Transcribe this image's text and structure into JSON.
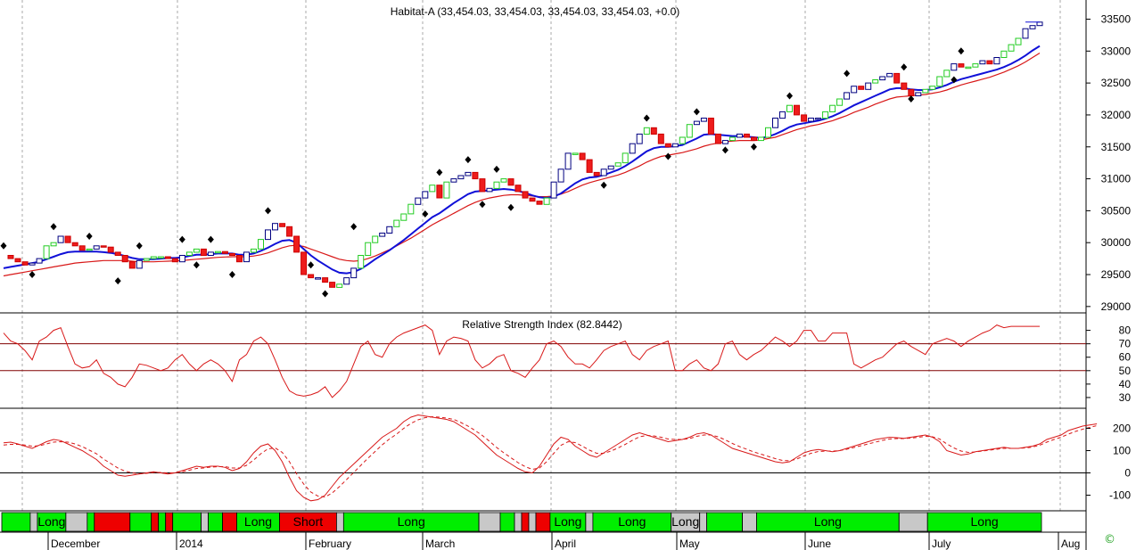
{
  "chart_data": [
    {
      "type": "candlestick",
      "title": "Habitat-A (33,454.03, 33,454.03, 33,454.03, 33,454.03, +0.0)",
      "ylim": [
        28900,
        33800
      ],
      "yticks": [
        29000,
        29500,
        30000,
        30500,
        31000,
        31500,
        32000,
        32500,
        33000,
        33500
      ],
      "ytick_labels": [
        "29000",
        "29500",
        "30000",
        "30500",
        "31000",
        "31500",
        "32000",
        "32500",
        "33000",
        "33500"
      ],
      "x_count": 146,
      "close": [
        29800,
        29750,
        29700,
        29650,
        29680,
        29750,
        29950,
        30000,
        30100,
        30000,
        29950,
        29880,
        29900,
        29950,
        29930,
        29850,
        29800,
        29700,
        29600,
        29720,
        29750,
        29780,
        29780,
        29750,
        29700,
        29800,
        29850,
        29900,
        29800,
        29850,
        29860,
        29830,
        29800,
        29700,
        29850,
        29900,
        30050,
        30200,
        30300,
        30250,
        30100,
        29850,
        29500,
        29450,
        29450,
        29380,
        29300,
        29350,
        29450,
        29600,
        29800,
        30000,
        30100,
        30150,
        30250,
        30350,
        30450,
        30600,
        30700,
        30800,
        30900,
        30700,
        30950,
        31000,
        31050,
        31100,
        31000,
        30800,
        30850,
        30950,
        31000,
        30900,
        30800,
        30700,
        30650,
        30600,
        30700,
        30950,
        31150,
        31400,
        31400,
        31300,
        31100,
        31050,
        31150,
        31200,
        31250,
        31400,
        31550,
        31700,
        31800,
        31700,
        31550,
        31500,
        31550,
        31650,
        31850,
        31900,
        31950,
        31700,
        31550,
        31600,
        31650,
        31700,
        31650,
        31600,
        31650,
        31800,
        31950,
        32050,
        32150,
        32000,
        31900,
        31950,
        31950,
        32050,
        32150,
        32250,
        32350,
        32450,
        32400,
        32500,
        32550,
        32600,
        32650,
        32500,
        32400,
        32300,
        32350,
        32400,
        32450,
        32600,
        32700,
        32800,
        32750,
        32750,
        32800,
        32850,
        32800,
        32900,
        33000,
        33100,
        33200,
        33350,
        33400,
        33454
      ],
      "ma_fast": [
        29600,
        29620,
        29640,
        29660,
        29680,
        29700,
        29740,
        29780,
        29820,
        29850,
        29860,
        29860,
        29860,
        29860,
        29850,
        29840,
        29820,
        29790,
        29760,
        29740,
        29740,
        29740,
        29750,
        29760,
        29760,
        29770,
        29790,
        29810,
        29810,
        29820,
        29830,
        29830,
        29830,
        29810,
        29810,
        29830,
        29870,
        29920,
        29980,
        30030,
        30040,
        30000,
        29900,
        29800,
        29720,
        29650,
        29580,
        29530,
        29520,
        29540,
        29590,
        29660,
        29740,
        29810,
        29880,
        29960,
        30040,
        30130,
        30220,
        30310,
        30400,
        30460,
        30540,
        30620,
        30690,
        30760,
        30800,
        30810,
        30820,
        30830,
        30840,
        30830,
        30810,
        30780,
        30740,
        30710,
        30700,
        30720,
        30770,
        30850,
        30930,
        30990,
        31020,
        31030,
        31060,
        31100,
        31140,
        31200,
        31270,
        31350,
        31430,
        31480,
        31500,
        31500,
        31510,
        31530,
        31580,
        31630,
        31690,
        31700,
        31690,
        31680,
        31670,
        31670,
        31660,
        31650,
        31640,
        31660,
        31700,
        31750,
        31810,
        31850,
        31870,
        31890,
        31910,
        31940,
        31980,
        32030,
        32090,
        32150,
        32200,
        32250,
        32300,
        32350,
        32400,
        32420,
        32420,
        32400,
        32390,
        32390,
        32400,
        32430,
        32470,
        32520,
        32560,
        32590,
        32620,
        32650,
        32680,
        32710,
        32750,
        32800,
        32860,
        32930,
        33010,
        33080
      ],
      "ma_slow": [
        29480,
        29500,
        29520,
        29540,
        29560,
        29580,
        29600,
        29620,
        29640,
        29660,
        29680,
        29690,
        29700,
        29710,
        29720,
        29720,
        29720,
        29720,
        29710,
        29700,
        29700,
        29700,
        29705,
        29710,
        29715,
        29720,
        29730,
        29740,
        29750,
        29760,
        29770,
        29775,
        29780,
        29780,
        29780,
        29790,
        29810,
        29840,
        29880,
        29920,
        29950,
        29960,
        29940,
        29900,
        29860,
        29820,
        29780,
        29740,
        29720,
        29710,
        29720,
        29750,
        29790,
        29840,
        29890,
        29950,
        30010,
        30070,
        30140,
        30210,
        30280,
        30340,
        30400,
        30460,
        30520,
        30580,
        30630,
        30670,
        30700,
        30720,
        30740,
        30750,
        30750,
        30740,
        30730,
        30720,
        30720,
        30730,
        30760,
        30800,
        30850,
        30900,
        30940,
        30970,
        31000,
        31030,
        31060,
        31100,
        31150,
        31200,
        31260,
        31310,
        31350,
        31370,
        31390,
        31410,
        31440,
        31470,
        31510,
        31540,
        31560,
        31580,
        31590,
        31600,
        31600,
        31600,
        31610,
        31630,
        31650,
        31690,
        31730,
        31770,
        31800,
        31830,
        31850,
        31880,
        31910,
        31950,
        31990,
        32040,
        32080,
        32120,
        32170,
        32210,
        32250,
        32280,
        32290,
        32300,
        32310,
        32320,
        32340,
        32360,
        32390,
        32430,
        32470,
        32500,
        32530,
        32560,
        32590,
        32630,
        32670,
        32720,
        32770,
        32830,
        32900,
        32970
      ],
      "markers_up": [
        [
          0,
          29950
        ],
        [
          7,
          30250
        ],
        [
          12,
          30100
        ],
        [
          19,
          29950
        ],
        [
          25,
          30050
        ],
        [
          29,
          30050
        ],
        [
          37,
          30500
        ],
        [
          61,
          31100
        ],
        [
          65,
          31300
        ],
        [
          69,
          31150
        ],
        [
          90,
          31950
        ],
        [
          97,
          32050
        ],
        [
          110,
          32300
        ],
        [
          118,
          32650
        ],
        [
          126,
          32750
        ],
        [
          134,
          33000
        ]
      ],
      "markers_down": [
        [
          4,
          29500
        ],
        [
          16,
          29400
        ],
        [
          27,
          29650
        ],
        [
          32,
          29500
        ],
        [
          43,
          29650
        ],
        [
          45,
          29200
        ],
        [
          49,
          30250
        ],
        [
          59,
          30450
        ],
        [
          67,
          30600
        ],
        [
          71,
          30550
        ],
        [
          84,
          30900
        ],
        [
          93,
          31350
        ],
        [
          101,
          31450
        ],
        [
          105,
          31500
        ],
        [
          127,
          32250
        ],
        [
          133,
          32550
        ]
      ],
      "x_labels": [
        "December",
        "2014",
        "February",
        "March",
        "April",
        "May",
        "June",
        "July",
        "Aug"
      ]
    },
    {
      "type": "line",
      "title": "Relative Strength Index (82.8442)",
      "ylim": [
        22,
        93
      ],
      "yticks": [
        30,
        40,
        50,
        60,
        70,
        80
      ],
      "ytick_labels": [
        "30",
        "40",
        "50",
        "60",
        "70",
        "80"
      ],
      "reference_lines": [
        50,
        70
      ],
      "values": [
        78,
        72,
        70,
        65,
        58,
        72,
        75,
        80,
        82,
        68,
        55,
        52,
        53,
        58,
        48,
        45,
        40,
        38,
        45,
        55,
        54,
        52,
        50,
        52,
        58,
        62,
        55,
        50,
        55,
        58,
        55,
        50,
        42,
        58,
        62,
        72,
        75,
        70,
        58,
        45,
        35,
        32,
        31,
        32,
        34,
        38,
        30,
        35,
        42,
        55,
        68,
        72,
        62,
        60,
        70,
        75,
        78,
        80,
        82,
        84,
        80,
        62,
        72,
        75,
        74,
        72,
        58,
        52,
        55,
        60,
        62,
        50,
        48,
        45,
        52,
        58,
        70,
        72,
        68,
        60,
        55,
        55,
        52,
        58,
        65,
        68,
        70,
        72,
        62,
        58,
        65,
        68,
        70,
        72,
        50,
        50,
        55,
        58,
        52,
        50,
        55,
        70,
        72,
        62,
        58,
        62,
        65,
        70,
        75,
        72,
        68,
        72,
        80,
        80,
        72,
        72,
        78,
        78,
        78,
        55,
        52,
        55,
        58,
        60,
        65,
        70,
        72,
        68,
        65,
        62,
        70,
        72,
        74,
        72,
        68,
        72,
        75,
        78,
        80,
        84,
        82,
        83,
        83,
        83,
        83,
        83
      ]
    },
    {
      "type": "line",
      "ylim": [
        -170,
        290
      ],
      "yticks": [
        -100,
        0,
        100,
        200
      ],
      "ytick_labels": [
        "-100",
        "0",
        "100",
        "200"
      ],
      "reference_lines": [
        0
      ],
      "series": [
        {
          "style": "solid",
          "values": [
            135,
            138,
            130,
            120,
            110,
            125,
            140,
            150,
            145,
            130,
            115,
            100,
            80,
            60,
            30,
            10,
            -10,
            -15,
            -10,
            -5,
            0,
            5,
            0,
            -5,
            0,
            10,
            20,
            30,
            25,
            30,
            30,
            25,
            10,
            20,
            50,
            90,
            120,
            130,
            100,
            50,
            -20,
            -80,
            -110,
            -125,
            -120,
            -100,
            -60,
            -20,
            10,
            40,
            70,
            100,
            130,
            160,
            180,
            200,
            230,
            250,
            260,
            255,
            250,
            245,
            240,
            230,
            210,
            190,
            170,
            140,
            110,
            80,
            60,
            40,
            20,
            5,
            0,
            30,
            80,
            130,
            160,
            150,
            120,
            100,
            80,
            70,
            90,
            110,
            130,
            150,
            170,
            180,
            170,
            160,
            150,
            140,
            145,
            150,
            160,
            175,
            180,
            170,
            150,
            130,
            110,
            100,
            90,
            80,
            70,
            60,
            50,
            45,
            50,
            70,
            90,
            100,
            105,
            100,
            95,
            100,
            110,
            120,
            130,
            140,
            150,
            155,
            160,
            158,
            155,
            160,
            165,
            170,
            160,
            140,
            100,
            90,
            80,
            85,
            95,
            100,
            105,
            110,
            115,
            110,
            110,
            115,
            120,
            130,
            150,
            160,
            170,
            190,
            200,
            210,
            215,
            220
          ]
        },
        {
          "style": "dashed",
          "values": [
            125,
            128,
            128,
            125,
            120,
            122,
            130,
            138,
            140,
            138,
            130,
            118,
            102,
            86,
            62,
            42,
            22,
            8,
            0,
            -4,
            -2,
            2,
            2,
            0,
            0,
            5,
            12,
            20,
            22,
            26,
            28,
            28,
            22,
            22,
            34,
            58,
            86,
            108,
            112,
            92,
            50,
            -4,
            -50,
            -86,
            -104,
            -108,
            -90,
            -62,
            -30,
            2,
            34,
            66,
            96,
            126,
            152,
            174,
            200,
            222,
            238,
            248,
            252,
            250,
            246,
            240,
            226,
            210,
            190,
            168,
            142,
            114,
            90,
            68,
            46,
            28,
            16,
            22,
            50,
            88,
            124,
            140,
            136,
            120,
            102,
            88,
            88,
            98,
            112,
            128,
            146,
            162,
            168,
            166,
            160,
            152,
            150,
            150,
            154,
            164,
            170,
            170,
            162,
            148,
            132,
            118,
            106,
            94,
            84,
            74,
            64,
            56,
            54,
            62,
            76,
            88,
            96,
            98,
            98,
            100,
            106,
            114,
            122,
            130,
            138,
            146,
            152,
            154,
            154,
            156,
            160,
            164,
            162,
            152,
            130,
            112,
            98,
            92,
            94,
            98,
            102,
            106,
            110,
            110,
            110,
            112,
            116,
            124,
            138,
            150,
            160,
            174,
            186,
            196,
            204,
            212
          ]
        }
      ]
    }
  ],
  "signal_strip": {
    "segments": [
      [
        "green",
        0,
        4,
        ""
      ],
      [
        "gray",
        4,
        5,
        ""
      ],
      [
        "green",
        5,
        9,
        "Long"
      ],
      [
        "gray",
        9,
        12,
        ""
      ],
      [
        "green",
        12,
        13,
        ""
      ],
      [
        "red",
        13,
        18,
        ""
      ],
      [
        "green",
        18,
        21,
        ""
      ],
      [
        "red",
        21,
        22,
        ""
      ],
      [
        "green",
        22,
        23,
        ""
      ],
      [
        "red",
        23,
        24,
        ""
      ],
      [
        "green",
        24,
        28,
        ""
      ],
      [
        "gray",
        28,
        29,
        ""
      ],
      [
        "green",
        29,
        31,
        ""
      ],
      [
        "red",
        31,
        33,
        ""
      ],
      [
        "green",
        33,
        39,
        "Long"
      ],
      [
        "red",
        39,
        47,
        "Short"
      ],
      [
        "gray",
        47,
        48,
        ""
      ],
      [
        "green",
        48,
        67,
        "Long"
      ],
      [
        "gray",
        67,
        70,
        ""
      ],
      [
        "green",
        70,
        72,
        ""
      ],
      [
        "gray",
        72,
        73,
        ""
      ],
      [
        "red",
        73,
        74,
        ""
      ],
      [
        "gray",
        74,
        75,
        ""
      ],
      [
        "red",
        75,
        77,
        ""
      ],
      [
        "green",
        77,
        82,
        "Long"
      ],
      [
        "gray",
        82,
        83,
        ""
      ],
      [
        "green",
        83,
        94,
        "Long"
      ],
      [
        "gray",
        94,
        98,
        "Long"
      ],
      [
        "gray",
        98,
        99,
        ""
      ],
      [
        "green",
        99,
        104,
        ""
      ],
      [
        "gray",
        104,
        106,
        ""
      ],
      [
        "green",
        106,
        126,
        "Long"
      ],
      [
        "gray",
        126,
        130,
        ""
      ],
      [
        "green",
        130,
        146,
        "Long"
      ]
    ]
  },
  "copyright": "©"
}
